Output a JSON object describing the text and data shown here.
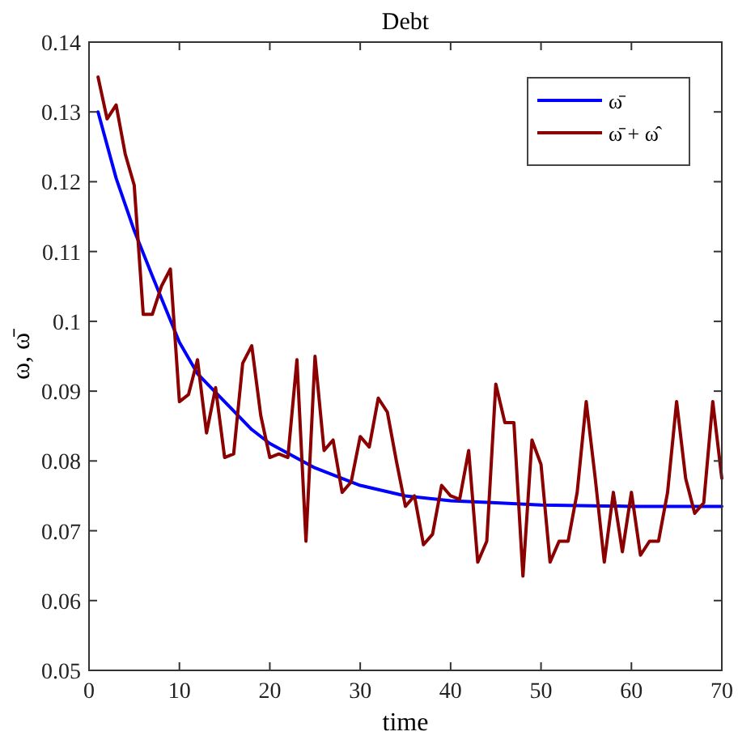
{
  "chart_data": {
    "type": "line",
    "title": "Debt",
    "xlabel": "time",
    "ylabel": "ω, ω̄",
    "xlim": [
      0,
      70
    ],
    "xticks": [
      0,
      10,
      20,
      30,
      40,
      50,
      60,
      70
    ],
    "ylim": [
      0.05,
      0.14
    ],
    "yticks": [
      0.05,
      0.06,
      0.07,
      0.08,
      0.09,
      0.1,
      0.11,
      0.12,
      0.13,
      0.14
    ],
    "grid": false,
    "legend": "top right",
    "marker": "none",
    "line_style": "solid",
    "series": [
      {
        "name": "ω̄",
        "color": "#0000ff",
        "x": [
          1,
          3,
          5,
          7,
          10,
          12,
          15,
          18,
          20,
          25,
          30,
          35,
          40,
          45,
          50,
          60,
          70
        ],
        "values": [
          0.13,
          0.1205,
          0.113,
          0.1065,
          0.097,
          0.0925,
          0.0885,
          0.0845,
          0.0825,
          0.079,
          0.0765,
          0.075,
          0.0743,
          0.074,
          0.0737,
          0.0735,
          0.0735
        ]
      },
      {
        "name": "ω̄ + ω̂",
        "color": "#8b0000",
        "x": [
          1,
          2,
          3,
          4,
          5,
          6,
          7,
          8,
          9,
          10,
          11,
          12,
          13,
          14,
          15,
          16,
          17,
          18,
          19,
          20,
          21,
          22,
          23,
          24,
          25,
          26,
          27,
          28,
          29,
          30,
          31,
          32,
          33,
          34,
          35,
          36,
          37,
          38,
          39,
          40,
          41,
          42,
          43,
          44,
          45,
          46,
          47,
          48,
          49,
          50,
          51,
          52,
          53,
          54,
          55,
          56,
          57,
          58,
          59,
          60,
          61,
          62,
          63,
          64,
          65,
          66,
          67,
          68,
          69,
          70
        ],
        "values": [
          0.135,
          0.129,
          0.131,
          0.124,
          0.1195,
          0.101,
          0.101,
          0.105,
          0.1075,
          0.0885,
          0.0895,
          0.0945,
          0.084,
          0.0905,
          0.0805,
          0.081,
          0.094,
          0.0965,
          0.0865,
          0.0805,
          0.081,
          0.0805,
          0.0945,
          0.0685,
          0.095,
          0.0815,
          0.083,
          0.0755,
          0.077,
          0.0835,
          0.082,
          0.089,
          0.087,
          0.08,
          0.0735,
          0.075,
          0.068,
          0.0695,
          0.0765,
          0.075,
          0.0745,
          0.0815,
          0.0655,
          0.0685,
          0.091,
          0.0855,
          0.0855,
          0.0635,
          0.083,
          0.0795,
          0.0655,
          0.0685,
          0.0685,
          0.0755,
          0.0885,
          0.0775,
          0.0655,
          0.0755,
          0.067,
          0.0755,
          0.0665,
          0.0685,
          0.0685,
          0.0755,
          0.0885,
          0.0775,
          0.0725,
          0.074,
          0.0885,
          0.0775
        ]
      }
    ]
  }
}
